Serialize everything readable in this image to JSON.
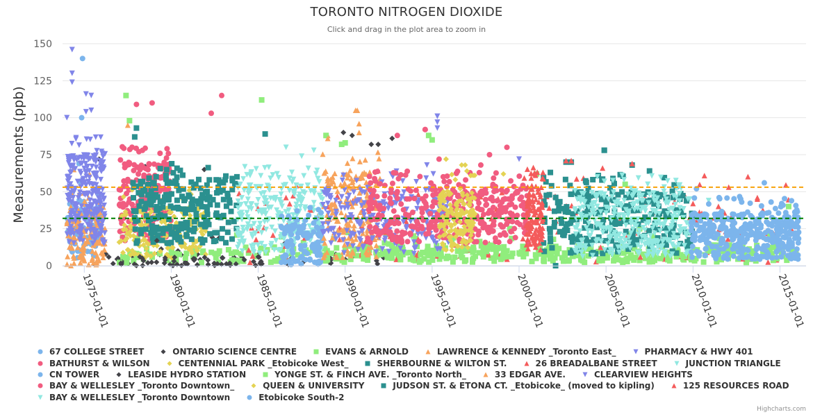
{
  "chart_data": {
    "type": "scatter",
    "title": "TORONTO NITROGEN DIOXIDE",
    "subtitle": "Click and drag in the plot area to zoom in",
    "xlabel": "",
    "ylabel": "Measurements (ppb)",
    "xaxis_type": "datetime",
    "xlim": [
      "1973-10-01",
      "2016-07-01"
    ],
    "ylim": [
      0,
      150
    ],
    "y_ticks": [
      0,
      25,
      50,
      75,
      100,
      125,
      150
    ],
    "x_ticks": [
      "1975-01-01",
      "1980-01-01",
      "1985-01-01",
      "1990-01-01",
      "1995-01-01",
      "2000-01-01",
      "2005-01-01",
      "2010-01-01",
      "2015-01-01"
    ],
    "grid": true,
    "legend_position": "bottom",
    "plot_lines": [
      {
        "value": 53,
        "color": "#f7a30a",
        "style": "dash"
      },
      {
        "value": 32,
        "color": "#008000",
        "style": "dash"
      }
    ],
    "series": [
      {
        "name": "67 COLLEGE STREET",
        "color": "#7cb5ec",
        "marker": "circle",
        "range": [
          1974.0,
          1976.0
        ],
        "band": [
          5,
          45
        ],
        "density": 90,
        "peaks": [
          [
            1974.9,
            140
          ],
          [
            1974.85,
            100
          ],
          [
            1974.7,
            69
          ],
          [
            1974.75,
            57
          ]
        ]
      },
      {
        "name": "ONTARIO SCIENCE CENTRE",
        "color": "#434348",
        "marker": "diamond",
        "range": [
          1975.5,
          1992.5
        ],
        "band": [
          0,
          8
        ],
        "density": 60,
        "peaks": [
          [
            1975.85,
            72
          ],
          [
            1989.9,
            90
          ],
          [
            1990.4,
            88
          ],
          [
            1991.5,
            82
          ],
          [
            1991.9,
            82
          ],
          [
            1992.7,
            86
          ],
          [
            1981.9,
            65
          ],
          [
            1978.5,
            67
          ]
        ]
      },
      {
        "name": "EVANS & ARNOLD",
        "color": "#90ed7d",
        "marker": "square",
        "range": [
          1977.0,
          2016.0
        ],
        "band": [
          2,
          12
        ],
        "density": 260,
        "peaks": [
          [
            1977.4,
            115
          ],
          [
            1985.2,
            112
          ],
          [
            1977.6,
            98
          ],
          [
            1989.8,
            82
          ],
          [
            1994.8,
            88
          ],
          [
            2001.0,
            62
          ],
          [
            2015.5,
            40
          ]
        ]
      },
      {
        "name": "LAWRENCE & KENNEDY _Toronto East_",
        "color": "#f7a35c",
        "marker": "triangle",
        "range": [
          1974.0,
          1976.2
        ],
        "band": [
          0,
          38
        ],
        "density": 140,
        "peaks": [
          [
            1990.6,
            105
          ],
          [
            1989.0,
            88
          ],
          [
            1990.8,
            96
          ],
          [
            1974.4,
            65
          ],
          [
            1975.3,
            62
          ],
          [
            1977.5,
            95
          ]
        ]
      },
      {
        "name": "PHARMACY & HWY 401",
        "color": "#8085e9",
        "marker": "triangle-down",
        "range": [
          1974.0,
          1976.2
        ],
        "band": [
          15,
          75
        ],
        "density": 260,
        "peaks": [
          [
            1974.3,
            146
          ],
          [
            1974.3,
            130
          ],
          [
            1974.3,
            124
          ],
          [
            1975.1,
            116
          ],
          [
            1975.4,
            115
          ],
          [
            1975.1,
            104
          ],
          [
            1975.4,
            105
          ],
          [
            1974.0,
            100
          ],
          [
            1995.3,
            101
          ],
          [
            1995.3,
            97
          ]
        ]
      },
      {
        "name": "BATHURST & WILSON",
        "color": "#f15c80",
        "marker": "circle",
        "range": [
          1977.0,
          1980.0
        ],
        "band": [
          15,
          70
        ],
        "density": 200,
        "peaks": [
          [
            1978.0,
            109
          ],
          [
            1978.9,
            110
          ],
          [
            1982.9,
            115
          ],
          [
            1982.3,
            103
          ],
          [
            1994.6,
            92
          ],
          [
            1999.3,
            80
          ]
        ]
      },
      {
        "name": "CENTENNIAL PARK _Etobicoke West_",
        "color": "#e4d354",
        "marker": "diamond",
        "range": [
          1977.0,
          1982.0
        ],
        "band": [
          5,
          40
        ],
        "density": 170,
        "peaks": [
          [
            1995.8,
            72
          ],
          [
            1996.7,
            68
          ],
          [
            1999.1,
            62
          ],
          [
            1981.1,
            40
          ]
        ]
      },
      {
        "name": "SHERBOURNE & WILTON ST.",
        "color": "#2b908f",
        "marker": "square",
        "range": [
          1977.8,
          1983.8
        ],
        "band": [
          15,
          58
        ],
        "density": 240,
        "peaks": [
          [
            1985.4,
            89
          ],
          [
            1978.0,
            93
          ],
          [
            1977.9,
            87
          ],
          [
            2004.9,
            78
          ],
          [
            2002.7,
            70
          ],
          [
            2001.8,
            63
          ]
        ]
      },
      {
        "name": "26 BREADALBANE STREET",
        "color": "#f45b5b",
        "marker": "triangle",
        "range": [
          1983.8,
          2016.0
        ],
        "band": [
          2,
          50
        ],
        "density": 170,
        "peaks": [
          [
            2002.7,
            71
          ],
          [
            2004.8,
            66
          ],
          [
            2013.7,
            45
          ],
          [
            2010.0,
            42
          ]
        ]
      },
      {
        "name": "JUNCTION TRIANGLE",
        "color": "#91e8e1",
        "marker": "triangle-down",
        "range": [
          1983.8,
          1988.7
        ],
        "band": [
          8,
          55
        ],
        "density": 260,
        "peaks": [
          [
            1986.6,
            80
          ],
          [
            1988.2,
            78
          ],
          [
            1987.5,
            74
          ],
          [
            2009.8,
            45
          ]
        ]
      },
      {
        "name": "CN TOWER",
        "color": "#7cb5ec",
        "marker": "circle",
        "range": [
          1986.3,
          1988.7
        ],
        "band": [
          0,
          28
        ],
        "density": 110,
        "peaks": [
          [
            1986.8,
            32
          ],
          [
            1987.9,
            34
          ]
        ]
      },
      {
        "name": "LEASIDE HYDRO STATION",
        "color": "#434348",
        "marker": "diamond",
        "range": [
          1977.0,
          1985.5
        ],
        "band": [
          0,
          6
        ],
        "density": 40,
        "peaks": [
          [
            1984.2,
            4
          ],
          [
            1985.0,
            6
          ]
        ]
      },
      {
        "name": "YONGE ST. & FINCH AVE. _Toronto North_",
        "color": "#90ed7d",
        "marker": "square",
        "range": [
          1988.7,
          2016.0
        ],
        "band": [
          3,
          14
        ],
        "density": 240,
        "peaks": [
          [
            1988.9,
            88
          ],
          [
            1990.0,
            83
          ],
          [
            1995.0,
            85
          ],
          [
            2006.1,
            55
          ]
        ]
      },
      {
        "name": "33 EDGAR AVE.",
        "color": "#f7a35c",
        "marker": "triangle",
        "range": [
          1988.7,
          1992.0
        ],
        "band": [
          4,
          65
        ],
        "density": 180,
        "peaks": [
          [
            1990.7,
            105
          ],
          [
            1989.0,
            86
          ],
          [
            1990.8,
            90
          ]
        ]
      },
      {
        "name": "CLEARVIEW HEIGHTS",
        "color": "#8085e9",
        "marker": "triangle-down",
        "range": [
          1988.7,
          1996.0
        ],
        "band": [
          8,
          52
        ],
        "density": 230,
        "peaks": [
          [
            1995.3,
            101
          ],
          [
            1995.3,
            93
          ],
          [
            1994.7,
            68
          ],
          [
            2000.0,
            72
          ]
        ]
      },
      {
        "name": "BAY & WELLESLEY _Toronto Downtown_",
        "color": "#f15c80",
        "marker": "circle",
        "range": [
          1991.3,
          2000.6
        ],
        "band": [
          15,
          52
        ],
        "density": 380,
        "peaks": [
          [
            1994.6,
            92
          ],
          [
            1993.0,
            88
          ],
          [
            1998.3,
            75
          ],
          [
            1997.8,
            68
          ],
          [
            1995.4,
            72
          ]
        ]
      },
      {
        "name": "QUEEN & UNIVERSITY",
        "color": "#e4d354",
        "marker": "diamond",
        "range": [
          1995.4,
          1997.5
        ],
        "band": [
          10,
          50
        ],
        "density": 150,
        "peaks": [
          [
            1995.8,
            72
          ],
          [
            1996.9,
            68
          ],
          [
            1997.0,
            64
          ]
        ]
      },
      {
        "name": "JUDSON ST. & ETONA CT. _Etobicoke_ (moved to kipling)",
        "color": "#2b908f",
        "marker": "square",
        "range": [
          2001.4,
          2010.0
        ],
        "band": [
          8,
          50
        ],
        "density": 260,
        "peaks": [
          [
            2004.9,
            78
          ],
          [
            2003.0,
            70
          ],
          [
            2006.5,
            68
          ],
          [
            2007.5,
            64
          ],
          [
            2002.1,
            0
          ]
        ]
      },
      {
        "name": "125 RESOURCES ROAD",
        "color": "#f45b5b",
        "marker": "triangle",
        "range": [
          2000.4,
          2001.4
        ],
        "band": [
          10,
          55
        ],
        "density": 110,
        "peaks": [
          [
            2003.0,
            71
          ],
          [
            2006.5,
            69
          ],
          [
            2013.7,
            46
          ]
        ]
      },
      {
        "name": "BAY & WELLESLEY _Toronto Downtown",
        "color": "#91e8e1",
        "marker": "triangle-down",
        "range": [
          2003.2,
          2009.9
        ],
        "band": [
          6,
          50
        ],
        "density": 330,
        "peaks": [
          [
            2004.5,
            60
          ],
          [
            2007.4,
            55
          ],
          [
            2010.9,
            44
          ]
        ]
      },
      {
        "name": "Etobicoke South-2",
        "color": "#7cb5ec",
        "marker": "circle",
        "range": [
          2009.9,
          2016.1
        ],
        "band": [
          4,
          35
        ],
        "density": 380,
        "peaks": [
          [
            2014.1,
            56
          ],
          [
            2010.2,
            52
          ],
          [
            2011.5,
            46
          ],
          [
            2015.1,
            42
          ],
          [
            2012.8,
            43
          ]
        ]
      }
    ]
  },
  "credits": "Highcharts.com"
}
